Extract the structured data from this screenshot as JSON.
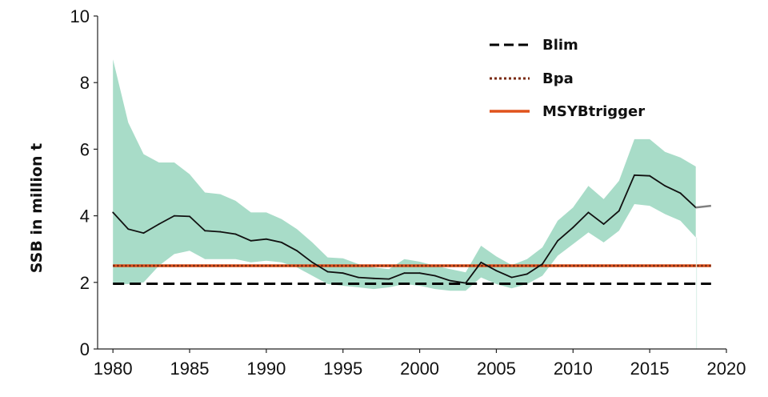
{
  "chart_data": {
    "type": "line",
    "ylabel": "SSB in million t",
    "xlabel": "",
    "title": "",
    "xlim": [
      1979,
      2020
    ],
    "ylim": [
      0,
      10
    ],
    "x_ticks": [
      1980,
      1985,
      1990,
      1995,
      2000,
      2005,
      2010,
      2015,
      2020
    ],
    "y_ticks": [
      0,
      2,
      4,
      6,
      8,
      10
    ],
    "grid": false,
    "legend_position": "top-right",
    "colors": {
      "band": "#a8dcc8",
      "ssb_line": "#111111",
      "ssb_tail": "#808080",
      "blim": "#000000",
      "bpa": "#7a2a10",
      "msy": "#e0531c"
    },
    "series": [
      {
        "kind": "ssb",
        "x": [
          1980,
          1981,
          1982,
          1983,
          1984,
          1985,
          1986,
          1987,
          1988,
          1989,
          1990,
          1991,
          1992,
          1993,
          1994,
          1995,
          1996,
          1997,
          1998,
          1999,
          2000,
          2001,
          2002,
          2003,
          2004,
          2005,
          2006,
          2007,
          2008,
          2009,
          2010,
          2011,
          2012,
          2013,
          2014,
          2015,
          2016,
          2017,
          2018
        ],
        "y": [
          4.1,
          3.6,
          3.48,
          3.75,
          4.0,
          3.98,
          3.55,
          3.52,
          3.45,
          3.25,
          3.3,
          3.2,
          2.95,
          2.6,
          2.32,
          2.28,
          2.15,
          2.12,
          2.1,
          2.28,
          2.28,
          2.2,
          2.05,
          1.98,
          2.6,
          2.35,
          2.15,
          2.25,
          2.55,
          3.25,
          3.65,
          4.1,
          3.75,
          4.15,
          5.22,
          5.2,
          4.9,
          4.68,
          4.25
        ],
        "lower": [
          1.95,
          1.95,
          2.0,
          2.5,
          2.85,
          2.95,
          2.7,
          2.7,
          2.7,
          2.6,
          2.65,
          2.6,
          2.45,
          2.2,
          1.95,
          1.9,
          1.85,
          1.8,
          1.85,
          1.95,
          1.9,
          1.8,
          1.75,
          1.75,
          2.15,
          1.95,
          1.82,
          1.95,
          2.2,
          2.8,
          3.15,
          3.5,
          3.2,
          3.55,
          4.35,
          4.3,
          4.05,
          3.85,
          3.35
        ],
        "upper": [
          8.7,
          6.8,
          5.85,
          5.6,
          5.6,
          5.25,
          4.7,
          4.65,
          4.45,
          4.1,
          4.1,
          3.9,
          3.6,
          3.2,
          2.75,
          2.72,
          2.55,
          2.45,
          2.4,
          2.7,
          2.62,
          2.5,
          2.4,
          2.3,
          3.1,
          2.78,
          2.52,
          2.7,
          3.05,
          3.85,
          4.25,
          4.9,
          4.5,
          5.05,
          6.3,
          6.3,
          5.92,
          5.75,
          5.48
        ]
      },
      {
        "kind": "projection",
        "x": [
          2018,
          2019
        ],
        "y": [
          4.25,
          4.3
        ]
      },
      {
        "kind": "blim",
        "name": "Blim",
        "x": [
          1980,
          2019
        ],
        "y": [
          1.96,
          1.96
        ]
      },
      {
        "kind": "bpa",
        "name": "Bpa",
        "x": [
          1980,
          2019
        ],
        "y": [
          2.5,
          2.5
        ]
      },
      {
        "kind": "msy",
        "name": "MSYBtrigger",
        "x": [
          1980,
          2019
        ],
        "y": [
          2.5,
          2.5
        ]
      }
    ],
    "legend": [
      "Blim",
      "Bpa",
      "MSYBtrigger"
    ]
  }
}
